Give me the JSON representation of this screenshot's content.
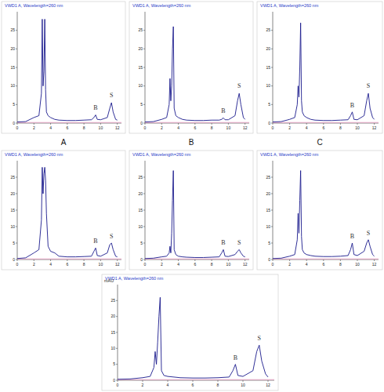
{
  "chart_data": [
    {
      "type": "line",
      "title": "VWD1 A, Wavelength=260 nm",
      "subtitle": "A",
      "color": "#1a1a8c",
      "x": [
        0,
        1,
        2,
        2.6,
        2.9,
        3.0,
        3.1,
        3.2,
        3.3,
        3.4,
        3.5,
        3.7,
        4.0,
        4.5,
        5,
        6,
        7,
        8,
        8.9,
        9.2,
        9.4,
        9.6,
        10,
        10.8,
        11.1,
        11.3,
        11.5,
        11.8,
        12
      ],
      "values": [
        0.3,
        0.4,
        1.5,
        2,
        8,
        28,
        10,
        14,
        28,
        9,
        3,
        2,
        1.5,
        1,
        0.8,
        0.7,
        0.7,
        0.8,
        0.9,
        1.5,
        2.2,
        1,
        0.9,
        1.5,
        4,
        5.5,
        3,
        1,
        0.8
      ],
      "xlim": [
        0,
        12.5
      ],
      "xticks": [
        0,
        2,
        4,
        6,
        8,
        10,
        12
      ],
      "ylim": [
        0,
        30
      ],
      "yticks": [
        0,
        5,
        10,
        15,
        20,
        25
      ],
      "annotations": [
        {
          "x": 9.4,
          "y": 3.5,
          "text": "B"
        },
        {
          "x": 11.3,
          "y": 7,
          "text": "S"
        }
      ]
    },
    {
      "type": "line",
      "title": "VWD1 A, Wavelength=260 nm",
      "subtitle": "B",
      "color": "#1a1a8c",
      "x": [
        0,
        1,
        2,
        2.6,
        2.9,
        3.0,
        3.1,
        3.2,
        3.3,
        3.4,
        3.5,
        3.7,
        4.0,
        4.5,
        5,
        6,
        7,
        8,
        8.9,
        9.2,
        9.4,
        9.6,
        10,
        10.8,
        11.1,
        11.3,
        11.5,
        11.8,
        12
      ],
      "values": [
        0.3,
        0.4,
        1,
        1.5,
        5,
        12,
        6,
        10,
        20,
        26,
        4,
        2,
        1.5,
        1,
        0.8,
        0.7,
        0.7,
        0.8,
        0.8,
        1,
        1.4,
        0.9,
        0.9,
        2,
        6,
        8,
        5,
        1.5,
        1
      ],
      "xlim": [
        0,
        12.5
      ],
      "xticks": [
        0,
        2,
        4,
        6,
        8,
        10,
        12
      ],
      "ylim": [
        0,
        30
      ],
      "yticks": [
        0,
        5,
        10,
        15,
        20,
        25
      ],
      "annotations": [
        {
          "x": 9.4,
          "y": 2.7,
          "text": "B"
        },
        {
          "x": 11.3,
          "y": 9.5,
          "text": "S"
        }
      ]
    },
    {
      "type": "line",
      "title": "VWD1 A, Wavelength=260 nm",
      "subtitle": "C",
      "color": "#1a1a8c",
      "x": [
        0,
        1,
        2,
        2.6,
        2.9,
        3.0,
        3.1,
        3.2,
        3.3,
        3.4,
        3.5,
        3.7,
        4.0,
        4.5,
        5,
        6,
        7,
        8,
        8.9,
        9.2,
        9.4,
        9.6,
        10,
        10.8,
        11.1,
        11.3,
        11.5,
        11.8,
        12
      ],
      "values": [
        0.3,
        0.4,
        1,
        1.5,
        5,
        10,
        7,
        15,
        27,
        6,
        3,
        2,
        1.5,
        1,
        0.8,
        0.7,
        0.7,
        0.8,
        0.9,
        2,
        3,
        1,
        0.9,
        2,
        6,
        8,
        4,
        1.5,
        1
      ],
      "xlim": [
        0,
        12.5
      ],
      "xticks": [
        0,
        2,
        4,
        6,
        8,
        10,
        12
      ],
      "ylim": [
        0,
        30
      ],
      "yticks": [
        0,
        5,
        10,
        15,
        20,
        25
      ],
      "annotations": [
        {
          "x": 9.4,
          "y": 4.3,
          "text": "B"
        },
        {
          "x": 11.3,
          "y": 9.5,
          "text": "S"
        }
      ]
    },
    {
      "type": "line",
      "title": "VWD1 A, Wavelength=260 nm",
      "color": "#1a1a8c",
      "x": [
        0,
        1,
        2,
        2.6,
        2.9,
        3.0,
        3.1,
        3.2,
        3.3,
        3.4,
        3.5,
        3.7,
        4.0,
        4.5,
        5,
        6,
        7,
        8,
        8.9,
        9.2,
        9.4,
        9.6,
        10,
        10.8,
        11.1,
        11.3,
        11.5,
        11.8,
        12
      ],
      "values": [
        0.3,
        0.5,
        2,
        3,
        12,
        28,
        20,
        26,
        28,
        24,
        14,
        4,
        2.5,
        2,
        1,
        0.8,
        0.8,
        0.9,
        1,
        2.5,
        3.5,
        1.2,
        1,
        2,
        4.5,
        5,
        3,
        1,
        0.8
      ],
      "xlim": [
        0,
        12.5
      ],
      "xticks": [
        0,
        2,
        4,
        6,
        8,
        10,
        12
      ],
      "ylim": [
        0,
        30
      ],
      "yticks": [
        0,
        5,
        10,
        15,
        20,
        25
      ],
      "annotations": [
        {
          "x": 9.4,
          "y": 5,
          "text": "B"
        },
        {
          "x": 11.3,
          "y": 6.5,
          "text": "S"
        }
      ]
    },
    {
      "type": "line",
      "title": "VWD1 A, Wavelength=260 nm",
      "color": "#1a1a8c",
      "x": [
        0,
        1,
        2,
        2.6,
        2.9,
        3.0,
        3.1,
        3.2,
        3.3,
        3.4,
        3.5,
        3.7,
        4.0,
        4.5,
        5,
        6,
        7,
        8,
        8.9,
        9.2,
        9.4,
        9.6,
        10,
        10.8,
        11.1,
        11.3,
        11.5,
        11.8,
        12
      ],
      "values": [
        0.3,
        0.4,
        0.8,
        1,
        2,
        4,
        2,
        8,
        18,
        27,
        3,
        1.5,
        1,
        0.8,
        0.7,
        0.6,
        0.6,
        0.7,
        0.8,
        2,
        3,
        1,
        0.9,
        1.5,
        2.5,
        3,
        2,
        1,
        0.8
      ],
      "xlim": [
        0,
        12.5
      ],
      "xticks": [
        0,
        2,
        4,
        6,
        8,
        10,
        12
      ],
      "ylim": [
        0,
        30
      ],
      "yticks": [
        0,
        5,
        10,
        15,
        20,
        25
      ],
      "annotations": [
        {
          "x": 9.4,
          "y": 4.5,
          "text": "B"
        },
        {
          "x": 11.3,
          "y": 4.5,
          "text": "S"
        }
      ]
    },
    {
      "type": "line",
      "title": "VWD1 A, Wavelength=260 nm",
      "color": "#1a1a8c",
      "x": [
        0,
        1,
        2,
        2.6,
        2.9,
        3.0,
        3.1,
        3.2,
        3.3,
        3.4,
        3.5,
        3.7,
        4.0,
        4.5,
        5,
        6,
        7,
        8,
        8.9,
        9.2,
        9.4,
        9.6,
        10,
        10.8,
        11.1,
        11.3,
        11.5,
        11.8,
        12
      ],
      "values": [
        0.3,
        0.4,
        1,
        1.5,
        6,
        14,
        8,
        18,
        27,
        7,
        3,
        2,
        1.5,
        1.2,
        1,
        0.9,
        0.9,
        1,
        1.2,
        3,
        5,
        1.5,
        1.2,
        2.5,
        5,
        6,
        4,
        1.5,
        1
      ],
      "xlim": [
        0,
        12.5
      ],
      "xticks": [
        0,
        2,
        4,
        6,
        8,
        10,
        12
      ],
      "ylim": [
        0,
        30
      ],
      "yticks": [
        0,
        5,
        10,
        15,
        20,
        25
      ],
      "annotations": [
        {
          "x": 9.4,
          "y": 6.5,
          "text": "B"
        },
        {
          "x": 11.3,
          "y": 7.5,
          "text": "S"
        }
      ]
    },
    {
      "type": "line",
      "title": "VWD1 A, Wavelength=260 nm",
      "ylabel": "mAU",
      "color": "#1a1a8c",
      "x": [
        0,
        1,
        2,
        2.6,
        2.9,
        3.0,
        3.1,
        3.2,
        3.3,
        3.4,
        3.5,
        3.7,
        4.0,
        4.5,
        5,
        6,
        7,
        8,
        8.9,
        9.2,
        9.4,
        9.6,
        10,
        10.8,
        11.1,
        11.3,
        11.5,
        11.8,
        12
      ],
      "values": [
        0.3,
        0.4,
        0.8,
        1.2,
        4,
        9,
        5,
        12,
        20,
        26,
        3,
        1.5,
        1.2,
        1,
        0.8,
        0.7,
        0.7,
        0.8,
        1,
        3,
        5,
        1.5,
        1.2,
        3,
        9,
        11,
        6,
        2,
        1
      ],
      "xlim": [
        0,
        12.5
      ],
      "xticks": [
        0,
        2,
        4,
        6,
        8,
        10,
        12
      ],
      "ylim": [
        0,
        30
      ],
      "yticks": [
        0,
        5,
        10,
        15,
        20,
        25
      ],
      "annotations": [
        {
          "x": 9.4,
          "y": 6.5,
          "text": "B"
        },
        {
          "x": 11.3,
          "y": 12.5,
          "text": "S"
        }
      ]
    }
  ]
}
